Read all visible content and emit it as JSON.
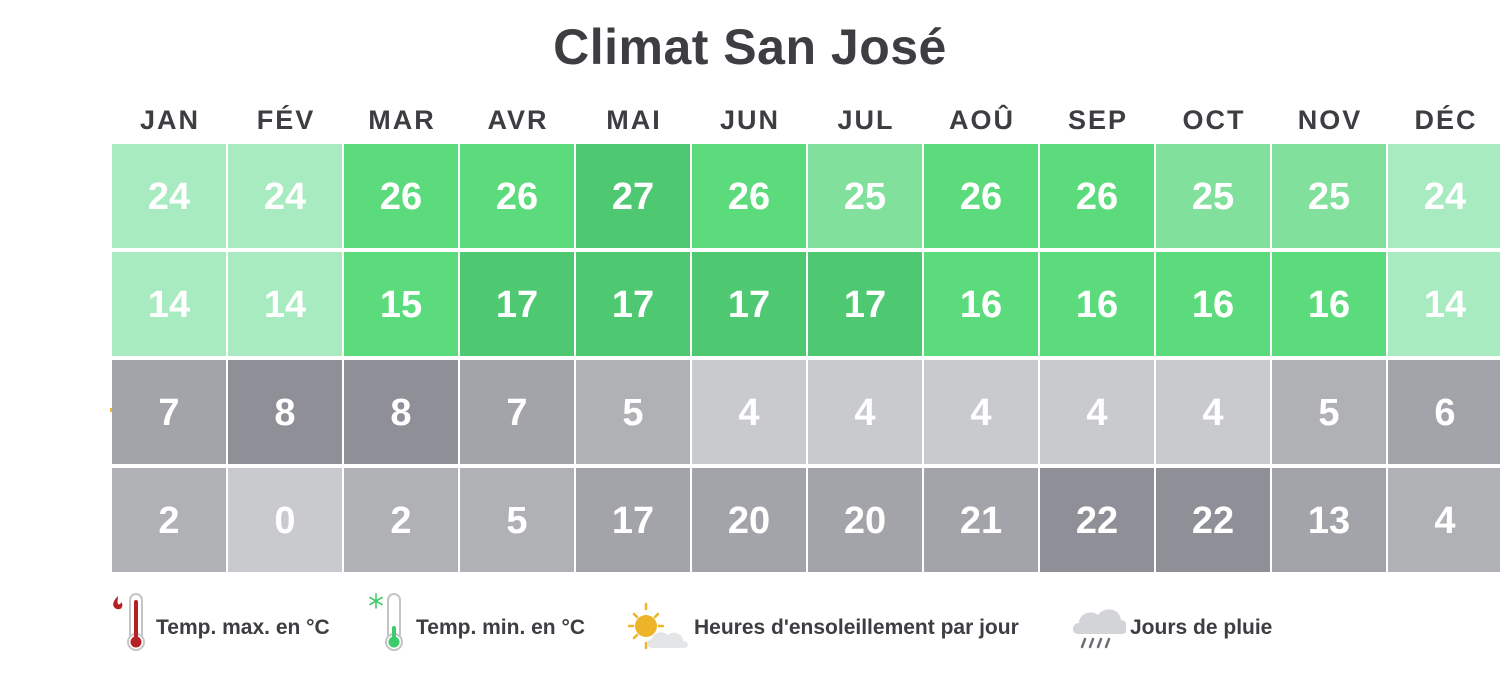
{
  "title": "Climat San José",
  "colors": {
    "green_scale": [
      "#a9ebc0",
      "#81e19c",
      "#5bdb7c",
      "#4fc872"
    ],
    "gray_scale": [
      "#c9cacd",
      "#b0b1b5",
      "#a3a4a9",
      "#8f9097"
    ]
  },
  "chart_data": {
    "type": "table",
    "title": "Climat San José",
    "categories": [
      "JAN",
      "FÉV",
      "MAR",
      "AVR",
      "MAI",
      "JUN",
      "JUL",
      "AOÛ",
      "SEP",
      "OCT",
      "NOV",
      "DÉC"
    ],
    "series": [
      {
        "name": "Temp. max. en °C",
        "icon": "thermometer-hot-icon",
        "palette": "green",
        "values": [
          24,
          24,
          26,
          26,
          27,
          26,
          25,
          26,
          26,
          25,
          25,
          24
        ],
        "levels": [
          0,
          0,
          2,
          2,
          3,
          2,
          1,
          2,
          2,
          1,
          1,
          0
        ]
      },
      {
        "name": "Temp. min. en °C",
        "icon": "thermometer-cold-icon",
        "palette": "green",
        "values": [
          14,
          14,
          15,
          17,
          17,
          17,
          17,
          16,
          16,
          16,
          16,
          14
        ],
        "levels": [
          0,
          0,
          2,
          3,
          3,
          3,
          3,
          2,
          2,
          2,
          2,
          0
        ]
      },
      {
        "name": "Heures d'ensoleillement par jour",
        "icon": "sun-cloud-icon",
        "palette": "gray",
        "values": [
          7,
          8,
          8,
          7,
          5,
          4,
          4,
          4,
          4,
          4,
          5,
          6
        ],
        "levels": [
          2,
          3,
          3,
          2,
          1,
          0,
          0,
          0,
          0,
          0,
          1,
          2
        ]
      },
      {
        "name": "Jours de pluie",
        "icon": "rain-cloud-icon",
        "palette": "gray",
        "values": [
          2,
          0,
          2,
          5,
          17,
          20,
          20,
          21,
          22,
          22,
          13,
          4
        ],
        "levels": [
          1,
          0,
          1,
          1,
          2,
          2,
          2,
          2,
          3,
          3,
          2,
          1
        ]
      }
    ]
  },
  "legend": [
    {
      "label": "Temp. max. en °C",
      "icon": "thermometer-hot-icon"
    },
    {
      "label": "Temp. min. en °C",
      "icon": "thermometer-cold-icon"
    },
    {
      "label": "Heures d'ensoleillement par jour",
      "icon": "sun-cloud-icon"
    },
    {
      "label": "Jours de pluie",
      "icon": "rain-cloud-icon"
    }
  ]
}
